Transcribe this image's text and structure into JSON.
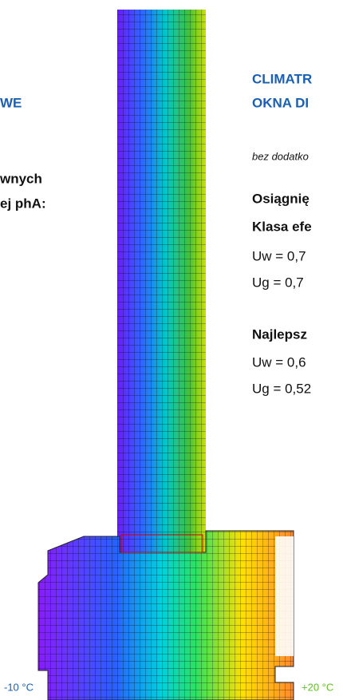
{
  "left_column": {
    "heading": "WE",
    "line_1": "wnych",
    "line_2": "ej phA:"
  },
  "right_column": {
    "title_line_1": "CLIMATR",
    "title_line_2": "OKNA DI",
    "subtitle": "bez dodatko",
    "section_1": {
      "heading_1": "Osiągnię",
      "heading_2": "Klasa efe",
      "uw": "Uw = 0,7",
      "ug": "Ug = 0,7"
    },
    "section_2": {
      "heading": "Najlepsz",
      "uw": "Uw = 0,6",
      "ug": "Ug = 0,52"
    }
  },
  "scale": {
    "min_label": "-10 °C",
    "max_label": "+20 °C"
  }
}
